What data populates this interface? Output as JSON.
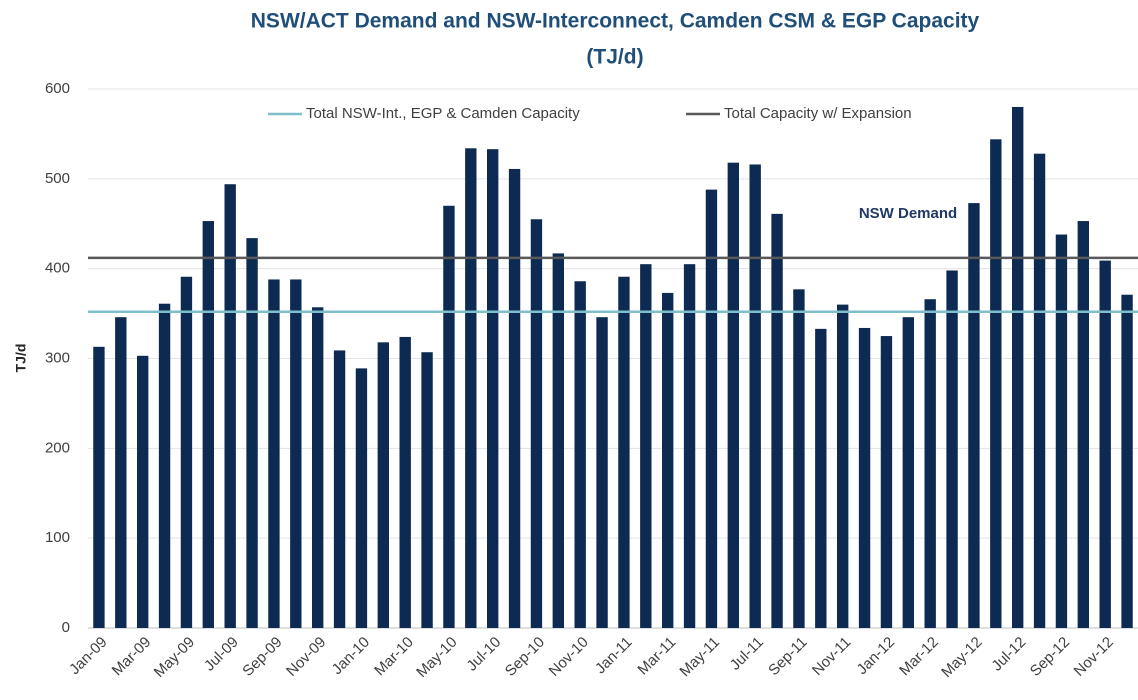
{
  "chart_data": {
    "type": "bar",
    "title": "NSW/ACT Demand and NSW-Interconnect, Camden CSM & EGP Capacity",
    "subtitle": "(TJ/d)",
    "y_label": "TJ/d",
    "annotation": "NSW Demand",
    "categories": [
      "Jan-09",
      null,
      "Mar-09",
      null,
      "May-09",
      null,
      "Jul-09",
      null,
      "Sep-09",
      null,
      "Nov-09",
      null,
      "Jan-10",
      null,
      "Mar-10",
      null,
      "May-10",
      null,
      "Jul-10",
      null,
      "Sep-10",
      null,
      "Nov-10",
      null,
      "Jan-11",
      null,
      "Mar-11",
      null,
      "May-11",
      null,
      "Jul-11",
      null,
      "Sep-11",
      null,
      "Nov-11",
      null,
      "Jan-12",
      null,
      "Mar-12",
      null,
      "May-12",
      null,
      "Jul-12",
      null,
      "Sep-12",
      null,
      "Nov-12",
      null
    ],
    "values": [
      313,
      346,
      303,
      361,
      391,
      453,
      494,
      434,
      388,
      388,
      357,
      309,
      289,
      318,
      324,
      307,
      470,
      534,
      533,
      511,
      455,
      417,
      386,
      346,
      391,
      405,
      373,
      405,
      488,
      518,
      516,
      461,
      377,
      333,
      360,
      334,
      325,
      346,
      366,
      398,
      473,
      544,
      580,
      528,
      438,
      453,
      409,
      371
    ],
    "color": "#0d2b52",
    "reference_lines": [
      {
        "name": "Total NSW-Int., EGP & Camden Capacity",
        "color": "#7fbfcc",
        "value": 352
      },
      {
        "name": "Total Capacity w/ Expansion",
        "color": "#595959",
        "value": 412
      }
    ],
    "ylim": [
      0,
      600
    ],
    "yticks": [
      0,
      100,
      200,
      300,
      400,
      500,
      600
    ],
    "grid": true,
    "legend": "top"
  }
}
